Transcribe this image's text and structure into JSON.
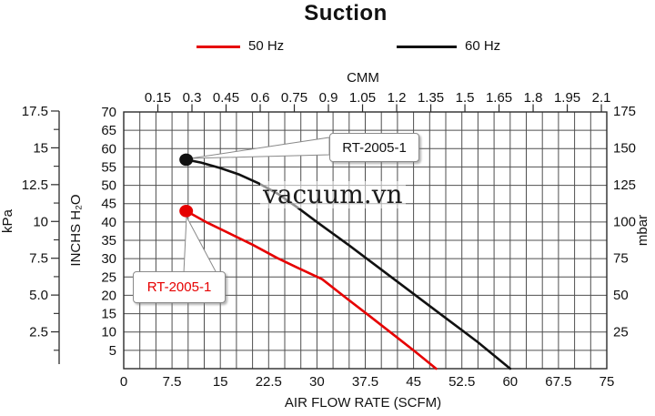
{
  "title": "Suction",
  "legend": {
    "items": [
      {
        "label": "50 Hz",
        "color": "#e60000"
      },
      {
        "label": "60 Hz",
        "color": "#111111"
      }
    ]
  },
  "watermark": {
    "text": "vacuum.vn"
  },
  "callouts": {
    "black": {
      "label": "RT-2005-1",
      "color": "#111111"
    },
    "red": {
      "label": "RT-2005-1",
      "color": "#e60000"
    }
  },
  "chart_data": {
    "type": "line",
    "title": "Suction",
    "x_axis_bottom": {
      "label": "AIR FLOW RATE (SCFM)",
      "range": [
        0,
        75
      ],
      "tick_step": 7.5,
      "tick_labels": [
        "0",
        "7.5",
        "15",
        "22.5",
        "30",
        "37.5",
        "45",
        "52.5",
        "60",
        "67.5",
        "75"
      ],
      "grid_step": 2.5
    },
    "x_axis_top": {
      "label": "CMM",
      "tick_labels": [
        "0.15",
        "0.3",
        "0.45",
        "0.6",
        "0.75",
        "0.9",
        "1.05",
        "1.2",
        "1.35",
        "1.5",
        "1.65",
        "1.8",
        "1.95",
        "2.1"
      ],
      "scfm_per_cmm": 35.315
    },
    "y_axis_left": {
      "label": "INCHS H₂O",
      "range": [
        0,
        70
      ],
      "tick_step": 5,
      "tick_labels": [
        "5",
        "10",
        "15",
        "20",
        "25",
        "30",
        "35",
        "40",
        "45",
        "50",
        "55",
        "60",
        "65",
        "70"
      ]
    },
    "y_axis_far_left": {
      "label": "kPa",
      "tick_labels": [
        "2.5",
        "5.0",
        "7.5",
        "10",
        "12.5",
        "15",
        "17.5"
      ],
      "inh2o_per_kpa": 4.0146,
      "minor_tick_step_kpa": 1.25
    },
    "y_axis_right": {
      "label": "mbar",
      "tick_labels": [
        "25",
        "50",
        "75",
        "100",
        "125",
        "150",
        "175"
      ],
      "inh2o_per_mbar": 0.40146
    },
    "grid": true,
    "legend_position": "top",
    "series": [
      {
        "name": "60 Hz",
        "color": "#111111",
        "marker_point": [
          9.7,
          57
        ],
        "points": [
          [
            9.7,
            57
          ],
          [
            12,
            56.2
          ],
          [
            15,
            54.7
          ],
          [
            18,
            52.9
          ],
          [
            21,
            50.5
          ],
          [
            24,
            47.6
          ],
          [
            27,
            43.9
          ],
          [
            30,
            40
          ],
          [
            35,
            33.6
          ],
          [
            40,
            27
          ],
          [
            45,
            20.4
          ],
          [
            50,
            13.8
          ],
          [
            55,
            7.2
          ],
          [
            60,
            0
          ]
        ]
      },
      {
        "name": "50 Hz",
        "color": "#e60000",
        "marker_point": [
          9.7,
          43
        ],
        "points": [
          [
            9.7,
            43
          ],
          [
            13,
            39.8
          ],
          [
            16.5,
            36.8
          ],
          [
            20,
            33.8
          ],
          [
            23.8,
            30.2
          ],
          [
            27,
            27.5
          ],
          [
            30.8,
            24.4
          ],
          [
            34,
            20
          ],
          [
            38,
            14.6
          ],
          [
            42,
            9.1
          ],
          [
            45,
            5
          ],
          [
            48.5,
            0
          ]
        ]
      }
    ]
  }
}
